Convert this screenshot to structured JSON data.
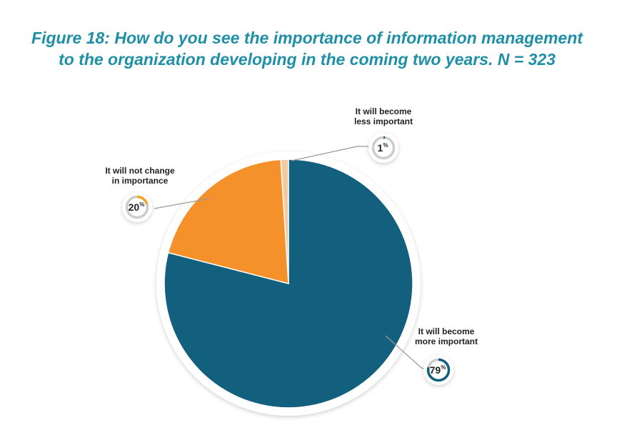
{
  "chart_data": {
    "type": "pie",
    "title": "Figure 18: How do you see the importance of information management to the organization developing in the coming two years. N = 323",
    "slices": [
      {
        "id": "less",
        "label_lines": [
          "It will become",
          "less important"
        ],
        "value": 1,
        "display": "1",
        "color": "#f5c9a0"
      },
      {
        "id": "more",
        "label_lines": [
          "It will become",
          "more important"
        ],
        "value": 79,
        "display": "79",
        "color": "#135f7e"
      },
      {
        "id": "nochange",
        "label_lines": [
          "It will not change",
          "in importance"
        ],
        "value": 20,
        "display": "20",
        "color": "#f5912b"
      }
    ],
    "percent_sign": "%",
    "colors": {
      "title": "#1e8fa6",
      "badge_track": "#cccccc",
      "badge_more": "#135f7e",
      "badge_less": "#135f7e",
      "badge_nochange": "#f5a623",
      "leader": "#999999"
    }
  }
}
